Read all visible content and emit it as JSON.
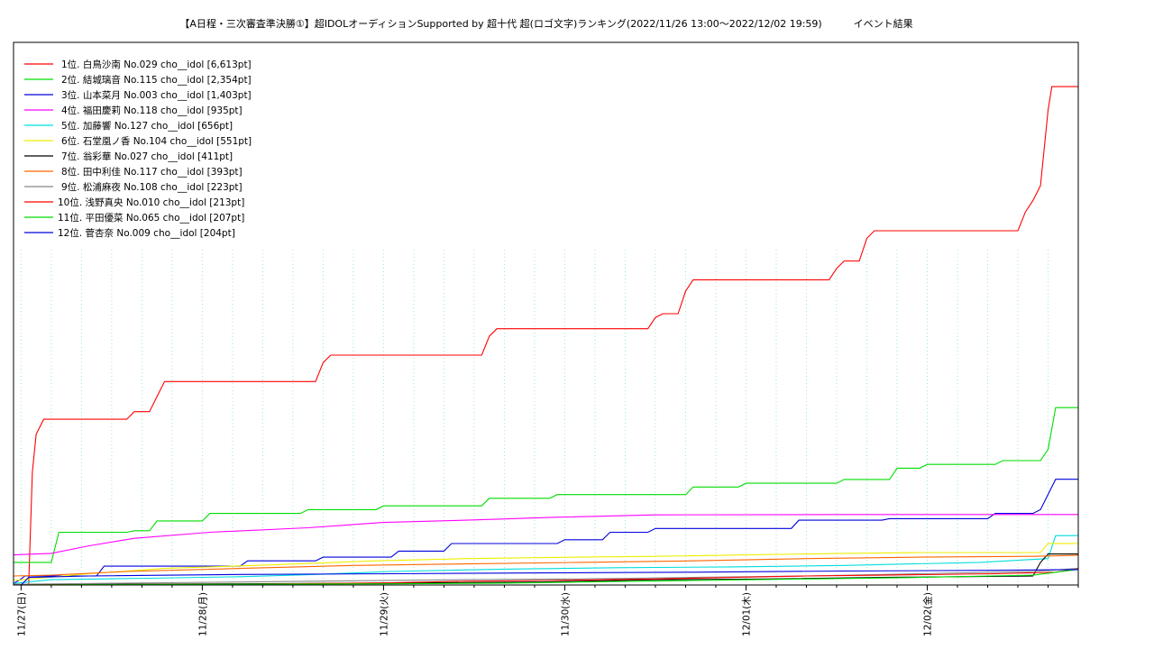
{
  "chart_data": {
    "type": "line",
    "title": "【A日程・三次審査準決勝①】超IDOLオーディションSupported by 超十代 超(ロゴ文字)ランキング(2022/11/26 13:00〜2022/12/02 19:59)",
    "subtitle": "イベント結果",
    "x_unit": "hours since 2022/11/26 13:00",
    "xlim": [
      10,
      151
    ],
    "ylim": [
      0,
      7200
    ],
    "grid": true,
    "legend_placement": "top-left",
    "x_tick_labels": [
      "11/27(日)",
      "11/28(月)",
      "11/29(火)",
      "11/30(水)",
      "12/01(木)",
      "12/02(金)"
    ],
    "x_tick_hours": [
      11,
      35,
      59,
      83,
      107,
      131
    ],
    "series": [
      {
        "name": "1位. 白鳥沙南 No.029 cho__idol [6,613pt]",
        "color": "#ff0000",
        "points": [
          [
            12,
            0
          ],
          [
            12.5,
            1500
          ],
          [
            13,
            2000
          ],
          [
            14,
            2200
          ],
          [
            15,
            2200
          ],
          [
            25,
            2200
          ],
          [
            26,
            2300
          ],
          [
            28,
            2300
          ],
          [
            29,
            2500
          ],
          [
            30,
            2700
          ],
          [
            50,
            2700
          ],
          [
            51,
            2950
          ],
          [
            52,
            3050
          ],
          [
            72,
            3050
          ],
          [
            73,
            3300
          ],
          [
            74,
            3400
          ],
          [
            94,
            3400
          ],
          [
            95,
            3550
          ],
          [
            96,
            3600
          ],
          [
            98,
            3600
          ],
          [
            99,
            3900
          ],
          [
            100,
            4050
          ],
          [
            118,
            4050
          ],
          [
            119,
            4200
          ],
          [
            120,
            4300
          ],
          [
            122,
            4300
          ],
          [
            123,
            4600
          ],
          [
            124,
            4700
          ],
          [
            143,
            4700
          ],
          [
            144,
            4950
          ],
          [
            145,
            5100
          ],
          [
            146,
            5300
          ],
          [
            147,
            6300
          ],
          [
            147.5,
            6613
          ],
          [
            151,
            6613
          ]
        ]
      },
      {
        "name": "2位. 結城璃音 No.115 cho__idol [2,354pt]",
        "color": "#00dd00",
        "points": [
          [
            10,
            300
          ],
          [
            15,
            300
          ],
          [
            16,
            700
          ],
          [
            25,
            700
          ],
          [
            26,
            720
          ],
          [
            28,
            720
          ],
          [
            29,
            850
          ],
          [
            35,
            850
          ],
          [
            36,
            950
          ],
          [
            48,
            950
          ],
          [
            49,
            1000
          ],
          [
            58,
            1000
          ],
          [
            59,
            1050
          ],
          [
            72,
            1050
          ],
          [
            73,
            1150
          ],
          [
            81,
            1150
          ],
          [
            82,
            1200
          ],
          [
            99,
            1200
          ],
          [
            100,
            1300
          ],
          [
            106,
            1300
          ],
          [
            107,
            1350
          ],
          [
            119,
            1350
          ],
          [
            120,
            1400
          ],
          [
            126,
            1400
          ],
          [
            127,
            1550
          ],
          [
            130,
            1550
          ],
          [
            131,
            1600
          ],
          [
            140,
            1600
          ],
          [
            141,
            1650
          ],
          [
            146,
            1650
          ],
          [
            147,
            1800
          ],
          [
            148,
            2354
          ],
          [
            151,
            2354
          ]
        ]
      },
      {
        "name": "3位. 山本菜月 No.003 cho__idol [1,403pt]",
        "color": "#0000dd",
        "points": [
          [
            10,
            20
          ],
          [
            11,
            80
          ],
          [
            11.5,
            120
          ],
          [
            21,
            120
          ],
          [
            22,
            250
          ],
          [
            40,
            250
          ],
          [
            41,
            320
          ],
          [
            50,
            320
          ],
          [
            51,
            370
          ],
          [
            60,
            370
          ],
          [
            61,
            450
          ],
          [
            67,
            450
          ],
          [
            68,
            550
          ],
          [
            82,
            550
          ],
          [
            83,
            600
          ],
          [
            88,
            600
          ],
          [
            89,
            700
          ],
          [
            94,
            700
          ],
          [
            95,
            750
          ],
          [
            113,
            750
          ],
          [
            114,
            860
          ],
          [
            125,
            860
          ],
          [
            126,
            880
          ],
          [
            139,
            880
          ],
          [
            140,
            950
          ],
          [
            145,
            950
          ],
          [
            146,
            1000
          ],
          [
            148,
            1403
          ],
          [
            151,
            1403
          ]
        ]
      },
      {
        "name": "4位. 福田慶莉 No.118 cho__idol [935pt]",
        "color": "#ff00ff",
        "points": [
          [
            10,
            400
          ],
          [
            15,
            420
          ],
          [
            20,
            520
          ],
          [
            26,
            620
          ],
          [
            36,
            700
          ],
          [
            49,
            760
          ],
          [
            59,
            830
          ],
          [
            70,
            860
          ],
          [
            82,
            900
          ],
          [
            95,
            930
          ],
          [
            120,
            935
          ],
          [
            151,
            935
          ]
        ]
      },
      {
        "name": "5位. 加藤響 No.127 cho__idol [656pt]",
        "color": "#00dddd",
        "points": [
          [
            10,
            20
          ],
          [
            15,
            70
          ],
          [
            28,
            90
          ],
          [
            40,
            110
          ],
          [
            50,
            140
          ],
          [
            60,
            180
          ],
          [
            75,
            210
          ],
          [
            90,
            230
          ],
          [
            105,
            240
          ],
          [
            120,
            260
          ],
          [
            138,
            300
          ],
          [
            147,
            350
          ],
          [
            148,
            656
          ],
          [
            151,
            656
          ]
        ]
      },
      {
        "name": "6位. 石堂凰ノ香 No.104 cho__idol [551pt]",
        "color": "#eeee00",
        "points": [
          [
            10,
            60
          ],
          [
            20,
            150
          ],
          [
            30,
            220
          ],
          [
            45,
            270
          ],
          [
            58,
            320
          ],
          [
            70,
            350
          ],
          [
            85,
            370
          ],
          [
            95,
            380
          ],
          [
            107,
            400
          ],
          [
            120,
            420
          ],
          [
            130,
            430
          ],
          [
            146,
            430
          ],
          [
            147,
            551
          ],
          [
            151,
            551
          ]
        ]
      },
      {
        "name": "7位. 翁彩華 No.027 cho__idol [411pt]",
        "color": "#000000",
        "points": [
          [
            10,
            0
          ],
          [
            20,
            10
          ],
          [
            40,
            15
          ],
          [
            60,
            25
          ],
          [
            80,
            40
          ],
          [
            95,
            70
          ],
          [
            110,
            80
          ],
          [
            125,
            100
          ],
          [
            145,
            120
          ],
          [
            146,
            300
          ],
          [
            147,
            411
          ],
          [
            151,
            411
          ]
        ]
      },
      {
        "name": "8位. 田中利佳 No.117 cho__idol [393pt]",
        "color": "#ff6600",
        "points": [
          [
            10,
            120
          ],
          [
            15,
            130
          ],
          [
            25,
            180
          ],
          [
            40,
            220
          ],
          [
            55,
            260
          ],
          [
            70,
            280
          ],
          [
            85,
            300
          ],
          [
            100,
            320
          ],
          [
            115,
            350
          ],
          [
            130,
            370
          ],
          [
            145,
            380
          ],
          [
            151,
            393
          ]
        ]
      },
      {
        "name": "9位. 松浦麻夜 No.108 cho__idol [223pt]",
        "color": "#888888",
        "points": [
          [
            10,
            10
          ],
          [
            30,
            30
          ],
          [
            50,
            50
          ],
          [
            70,
            70
          ],
          [
            85,
            80
          ],
          [
            100,
            100
          ],
          [
            115,
            120
          ],
          [
            130,
            150
          ],
          [
            145,
            180
          ],
          [
            151,
            223
          ]
        ]
      },
      {
        "name": "10位. 浅野真央 No.010 cho__idol [213pt]",
        "color": "#ff0000",
        "points": [
          [
            10,
            0
          ],
          [
            20,
            5
          ],
          [
            40,
            10
          ],
          [
            60,
            30
          ],
          [
            70,
            50
          ],
          [
            80,
            60
          ],
          [
            95,
            80
          ],
          [
            105,
            100
          ],
          [
            115,
            120
          ],
          [
            125,
            130
          ],
          [
            140,
            150
          ],
          [
            148,
            170
          ],
          [
            151,
            213
          ]
        ]
      },
      {
        "name": "11位. 平田優菜 No.065 cho__idol [207pt]",
        "color": "#00dd00",
        "points": [
          [
            10,
            0
          ],
          [
            20,
            5
          ],
          [
            40,
            10
          ],
          [
            60,
            15
          ],
          [
            75,
            25
          ],
          [
            85,
            40
          ],
          [
            100,
            60
          ],
          [
            115,
            80
          ],
          [
            130,
            100
          ],
          [
            145,
            130
          ],
          [
            151,
            207
          ]
        ]
      },
      {
        "name": "12位. 菅杏奈 No.009 cho__idol [204pt]",
        "color": "#0000dd",
        "points": [
          [
            10,
            0
          ],
          [
            11,
            0
          ],
          [
            12,
            100
          ],
          [
            20,
            120
          ],
          [
            40,
            140
          ],
          [
            60,
            150
          ],
          [
            80,
            160
          ],
          [
            100,
            170
          ],
          [
            120,
            185
          ],
          [
            140,
            195
          ],
          [
            151,
            204
          ]
        ]
      }
    ]
  }
}
